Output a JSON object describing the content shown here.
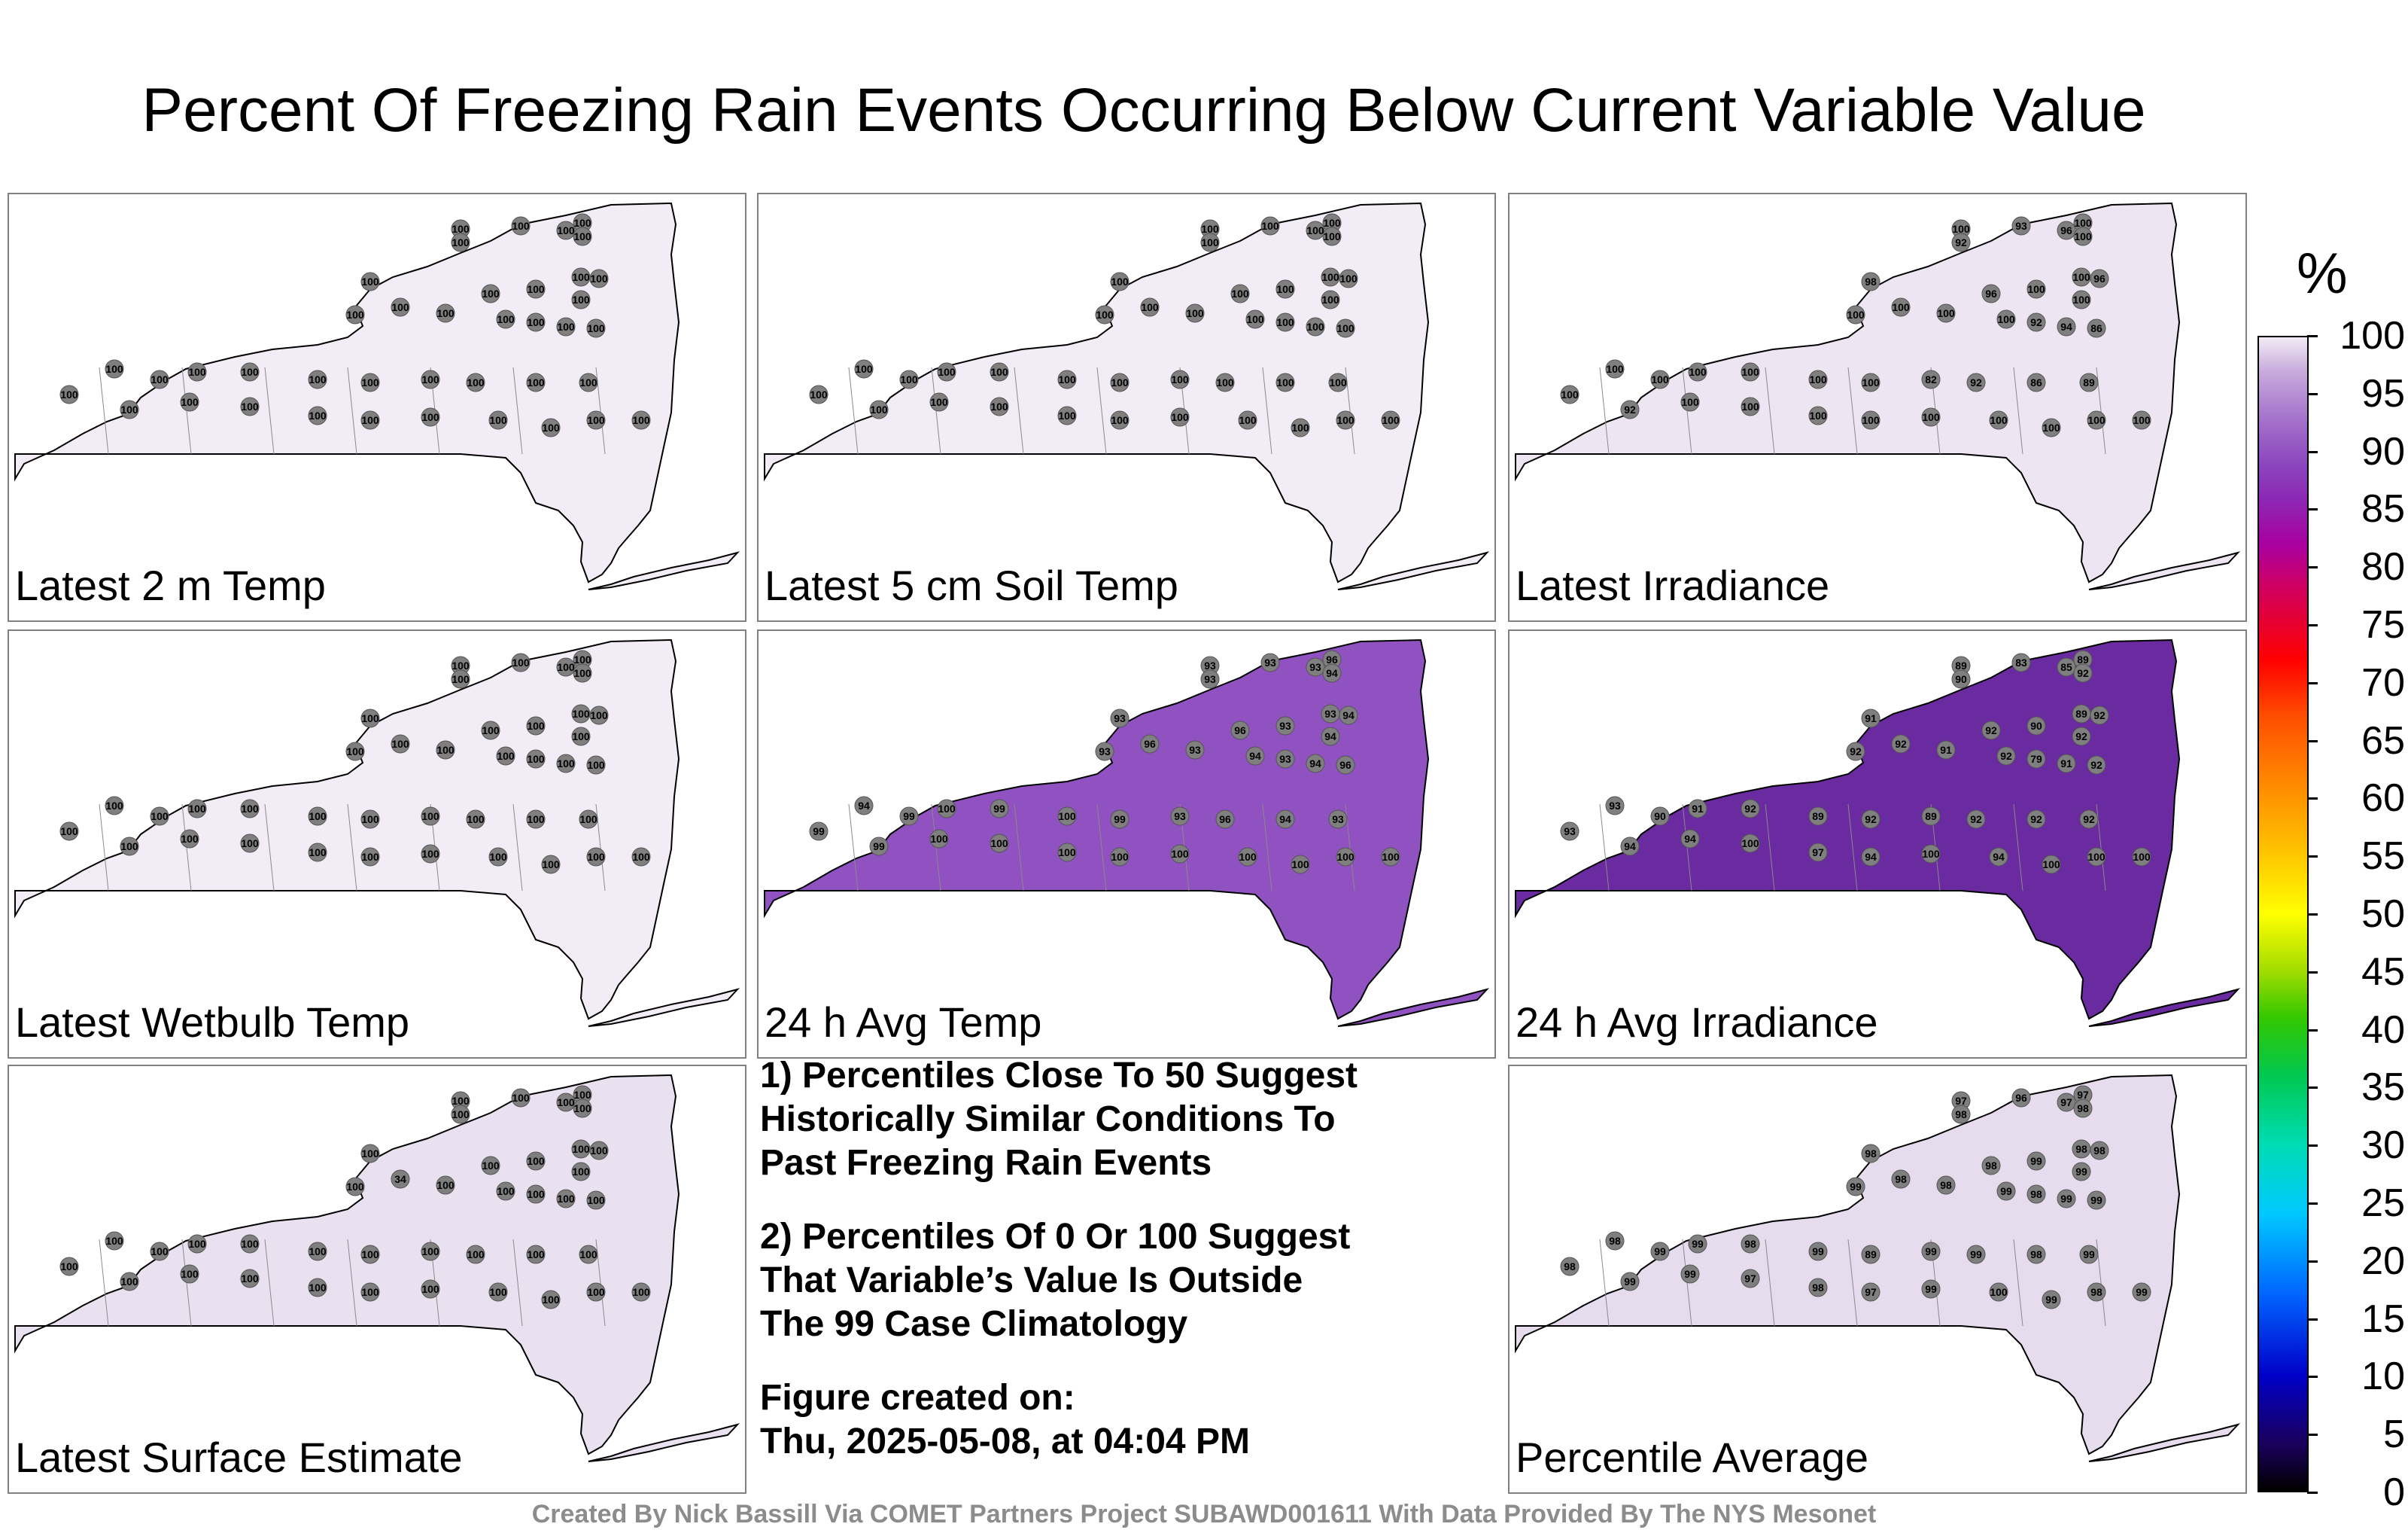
{
  "title": "Percent Of Freezing Rain Events Occurring Below Current Variable Value",
  "panels": [
    {
      "label": "Latest 2 m Temp",
      "fill": "#f1ecf5",
      "values": [
        "100",
        "100",
        "100",
        "100",
        "100",
        "100",
        "100",
        "100",
        "100",
        "100",
        "100",
        "100",
        "100",
        "100",
        "100",
        "100",
        "100",
        "100",
        "100",
        "100",
        "100",
        "100",
        "100",
        "100",
        "100",
        "100",
        "100",
        "100",
        "100",
        "100",
        "100",
        "100",
        "100",
        "100",
        "100",
        "100",
        "100",
        "100",
        "100",
        "100"
      ]
    },
    {
      "label": "Latest 5 cm Soil Temp",
      "fill": "#f1ecf5",
      "values": [
        "100",
        "100",
        "100",
        "100",
        "100",
        "100",
        "100",
        "100",
        "100",
        "100",
        "100",
        "100",
        "100",
        "100",
        "100",
        "100",
        "100",
        "100",
        "100",
        "100",
        "100",
        "100",
        "100",
        "100",
        "100",
        "100",
        "100",
        "100",
        "100",
        "100",
        "100",
        "100",
        "100",
        "100",
        "100",
        "100",
        "100",
        "100",
        "100",
        "100"
      ]
    },
    {
      "label": "Latest Irradiance",
      "fill": "#ede5f2",
      "values": [
        "100",
        "93",
        "96",
        "100",
        "92",
        "100",
        "98",
        "96",
        "100",
        "100",
        "96",
        "100",
        "100",
        "100",
        "100",
        "100",
        "92",
        "94",
        "86",
        "100",
        "100",
        "100",
        "100",
        "100",
        "100",
        "82",
        "92",
        "86",
        "89",
        "100",
        "92",
        "100",
        "100",
        "100",
        "100",
        "100",
        "100",
        "100",
        "100",
        "100"
      ]
    },
    {
      "label": "Latest Wetbulb Temp",
      "fill": "#f1ecf5",
      "values": [
        "100",
        "100",
        "100",
        "100",
        "100",
        "100",
        "100",
        "100",
        "100",
        "100",
        "100",
        "100",
        "100",
        "100",
        "100",
        "100",
        "100",
        "100",
        "100",
        "100",
        "100",
        "100",
        "100",
        "100",
        "100",
        "100",
        "100",
        "100",
        "100",
        "100",
        "100",
        "100",
        "100",
        "100",
        "100",
        "100",
        "100",
        "100",
        "100",
        "100"
      ]
    },
    {
      "label": "24 h Avg Temp",
      "fill": "#8f52c0",
      "values": [
        "93",
        "93",
        "93",
        "96",
        "93",
        "94",
        "93",
        "96",
        "93",
        "93",
        "94",
        "94",
        "93",
        "96",
        "93",
        "94",
        "93",
        "94",
        "96",
        "94",
        "99",
        "100",
        "99",
        "100",
        "99",
        "93",
        "96",
        "94",
        "93",
        "99",
        "99",
        "100",
        "100",
        "100",
        "100",
        "100",
        "100",
        "100",
        "100",
        "100"
      ]
    },
    {
      "label": "24 h Avg Irradiance",
      "fill": "#6a2aa0",
      "values": [
        "89",
        "83",
        "85",
        "89",
        "90",
        "92",
        "91",
        "92",
        "90",
        "89",
        "92",
        "92",
        "92",
        "92",
        "91",
        "92",
        "79",
        "91",
        "92",
        "93",
        "90",
        "91",
        "92",
        "89",
        "92",
        "89",
        "92",
        "92",
        "92",
        "93",
        "94",
        "94",
        "100",
        "97",
        "94",
        "100",
        "94",
        "100",
        "100",
        "100"
      ]
    },
    {
      "label": "Latest Surface Estimate",
      "fill": "#e9e0f0",
      "values": [
        "100",
        "100",
        "100",
        "100",
        "100",
        "100",
        "100",
        "100",
        "100",
        "100",
        "100",
        "100",
        "100",
        "34",
        "100",
        "100",
        "100",
        "100",
        "100",
        "100",
        "100",
        "100",
        "100",
        "100",
        "100",
        "100",
        "100",
        "100",
        "100",
        "100",
        "100",
        "100",
        "100",
        "100",
        "100",
        "100",
        "100",
        "100",
        "100",
        "100"
      ]
    },
    {
      "label": "Percentile Average",
      "fill": "#e6dcee",
      "values": [
        "97",
        "96",
        "97",
        "97",
        "98",
        "98",
        "98",
        "98",
        "99",
        "98",
        "98",
        "99",
        "99",
        "98",
        "98",
        "99",
        "98",
        "99",
        "99",
        "98",
        "99",
        "99",
        "98",
        "99",
        "89",
        "99",
        "99",
        "98",
        "99",
        "98",
        "99",
        "99",
        "97",
        "98",
        "97",
        "99",
        "100",
        "99",
        "98",
        "99"
      ]
    }
  ],
  "notes": {
    "line1": "1) Percentiles Close To 50 Suggest",
    "line2": "Historically Similar Conditions To",
    "line3": "Past Freezing Rain Events",
    "line4": "2) Percentiles Of 0 Or 100 Suggest",
    "line5": "That Variable’s Value Is Outside",
    "line6": "The 99 Case Climatology",
    "line7": "Figure created on:",
    "line8": "Thu, 2025-05-08, at 04:04 PM"
  },
  "colorbar": {
    "unit": "%",
    "ticks": [
      "100",
      "95",
      "90",
      "85",
      "80",
      "75",
      "70",
      "65",
      "60",
      "55",
      "50",
      "45",
      "40",
      "35",
      "30",
      "25",
      "20",
      "15",
      "10",
      "5",
      "0"
    ]
  },
  "credit": "Created By Nick Bassill Via COMET Partners Project SUBAWD001611 With Data Provided By The NYS Mesonet"
}
